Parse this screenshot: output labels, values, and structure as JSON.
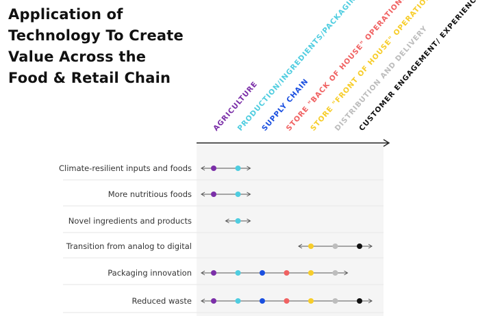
{
  "title": [
    "Application of",
    "Technology To Create",
    "Value Across the",
    "Food & Retail Chain"
  ],
  "columns": [
    {
      "label": "AGRICULTURE",
      "color": "#7b2fa8"
    },
    {
      "label": "PRODUCTION/INGREDIENTS/PACKAGING/CPG",
      "color": "#4fcde0"
    },
    {
      "label": "SUPPLY CHAIN",
      "color": "#1a4fe0"
    },
    {
      "label": "STORE \"BACK OF HOUSE\" OPERATIONS",
      "color": "#f06262"
    },
    {
      "label": "STORE \"FRONT OF HOUSE\" OPERATIONS",
      "color": "#f7cd2a"
    },
    {
      "label": "DISTRIBUTION AND DELIVERY",
      "color": "#bdbdbd"
    },
    {
      "label": "CUSTOMER ENGAGEMENT/ EXPERIENCE",
      "color": "#111111"
    }
  ],
  "rows": [
    {
      "label": "Climate-resilient inputs and foods",
      "stages": [
        0,
        1
      ]
    },
    {
      "label": "More nutritious foods",
      "stages": [
        0,
        1
      ]
    },
    {
      "label": "Novel ingredients and products",
      "stages": [
        1
      ]
    },
    {
      "label": "Transition from analog to digital",
      "stages": [
        4,
        5,
        6
      ]
    },
    {
      "label": "Packaging innovation",
      "stages": [
        0,
        1,
        2,
        3,
        4,
        5
      ]
    },
    {
      "label": "Reduced waste",
      "stages": [
        0,
        1,
        2,
        3,
        4,
        5,
        6
      ]
    }
  ]
}
